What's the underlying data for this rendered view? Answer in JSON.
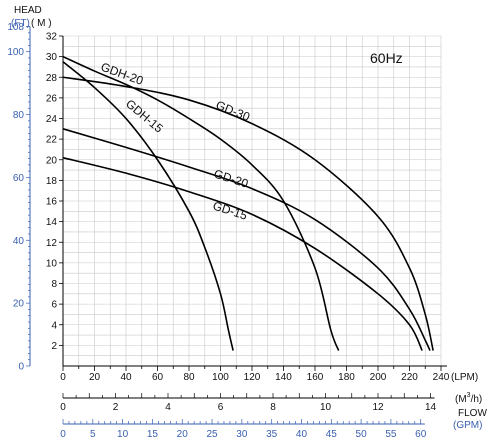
{
  "chart_data": {
    "type": "line",
    "annotation": "60Hz",
    "y_axis": {
      "head_label": "HEAD",
      "ft_unit": "(FT)",
      "m_unit": "( M )",
      "m_range": [
        0,
        32
      ],
      "m_ticks": [
        "2",
        "4",
        "6",
        "8",
        "10",
        "12",
        "14",
        "16",
        "18",
        "20",
        "22",
        "24",
        "26",
        "28",
        "30",
        "32"
      ],
      "ft_ticks": [
        "0",
        "20",
        "40",
        "60",
        "80",
        "100",
        "108"
      ]
    },
    "x_axes": {
      "lpm": {
        "unit": "(LPM)",
        "range": [
          0,
          240
        ],
        "ticks": [
          "0",
          "20",
          "40",
          "60",
          "80",
          "100",
          "120",
          "140",
          "160",
          "180",
          "200",
          "220",
          "240"
        ]
      },
      "m3h": {
        "unit_main": "(M",
        "unit_sup": "3",
        "unit_end": "/h)",
        "ticks": [
          "0",
          "2",
          "4",
          "6",
          "8",
          "10",
          "12",
          "14"
        ]
      },
      "flow_label": "FLOW",
      "gpm": {
        "unit": "(GPM)",
        "ticks": [
          "0",
          "5",
          "10",
          "15",
          "20",
          "25",
          "30",
          "35",
          "40",
          "45",
          "50",
          "55",
          "60"
        ]
      }
    },
    "series": [
      {
        "name": "GDH-20",
        "x": [
          0,
          20,
          40,
          60,
          80,
          90,
          100,
          105,
          108
        ],
        "y": [
          29.5,
          27,
          24,
          20,
          15,
          11.5,
          7,
          3.5,
          1.5
        ]
      },
      {
        "name": "GDH-15",
        "x": [
          0,
          20,
          40,
          60,
          80,
          100,
          120,
          140,
          160,
          170,
          175
        ],
        "y": [
          30,
          28.6,
          27.3,
          25.8,
          24,
          22,
          19.5,
          16,
          9.5,
          3.5,
          1.5
        ]
      },
      {
        "name": "GD-30",
        "x": [
          0,
          40,
          80,
          120,
          160,
          200,
          220,
          230,
          235
        ],
        "y": [
          28,
          27.1,
          25.8,
          23.5,
          20,
          14.5,
          9.5,
          5,
          1.5
        ]
      },
      {
        "name": "GD-20",
        "x": [
          0,
          40,
          80,
          120,
          160,
          200,
          220,
          230,
          233
        ],
        "y": [
          23,
          21.2,
          19.3,
          17.2,
          14.2,
          9.5,
          5.5,
          2.5,
          1.5
        ]
      },
      {
        "name": "GD-15",
        "x": [
          0,
          40,
          80,
          120,
          160,
          200,
          220,
          228
        ],
        "y": [
          20.2,
          18.7,
          16.9,
          14.7,
          11.4,
          7,
          4,
          1.5
        ]
      }
    ]
  }
}
